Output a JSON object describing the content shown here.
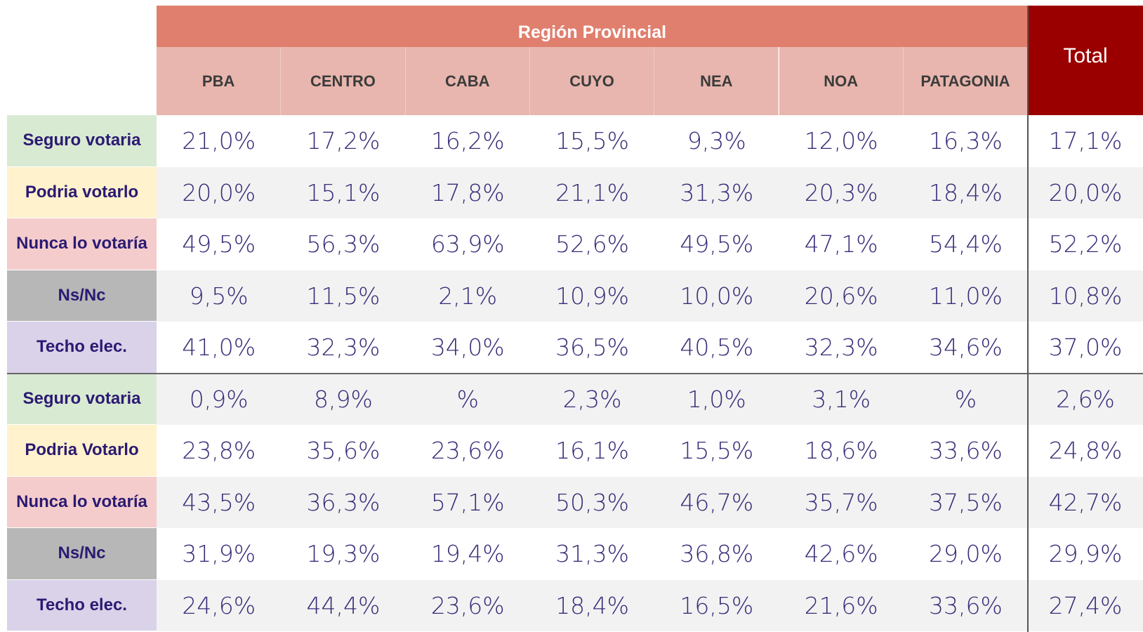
{
  "header": {
    "group": "Región Provincial",
    "columns": [
      "PBA",
      "CENTRO",
      "CABA",
      "CUYO",
      "NEA",
      "NOA",
      "PATAGONIA"
    ],
    "total": "Total"
  },
  "rows": [
    {
      "label": "Seguro votaria",
      "values": [
        "21,0%",
        "17,2%",
        "16,2%",
        "15,5%",
        "9,3%",
        "12,0%",
        "16,3%"
      ],
      "total": "17,1%"
    },
    {
      "label": "Podria votarlo",
      "values": [
        "20,0%",
        "15,1%",
        "17,8%",
        "21,1%",
        "31,3%",
        "20,3%",
        "18,4%"
      ],
      "total": "20,0%"
    },
    {
      "label": "Nunca lo votaría",
      "values": [
        "49,5%",
        "56,3%",
        "63,9%",
        "52,6%",
        "49,5%",
        "47,1%",
        "54,4%"
      ],
      "total": "52,2%"
    },
    {
      "label": "Ns/Nc",
      "values": [
        "9,5%",
        "11,5%",
        "2,1%",
        "10,9%",
        "10,0%",
        "20,6%",
        "11,0%"
      ],
      "total": "10,8%"
    },
    {
      "label": "Techo elec.",
      "values": [
        "41,0%",
        "32,3%",
        "34,0%",
        "36,5%",
        "40,5%",
        "32,3%",
        "34,6%"
      ],
      "total": "37,0%"
    },
    {
      "label": "Seguro votaria",
      "values": [
        "0,9%",
        "8,9%",
        "%",
        "2,3%",
        "1,0%",
        "3,1%",
        "%"
      ],
      "total": "2,6%"
    },
    {
      "label": "Podria Votarlo",
      "values": [
        "23,8%",
        "35,6%",
        "23,6%",
        "16,1%",
        "15,5%",
        "18,6%",
        "33,6%"
      ],
      "total": "24,8%"
    },
    {
      "label": "Nunca lo votaría",
      "values": [
        "43,5%",
        "36,3%",
        "57,1%",
        "50,3%",
        "46,7%",
        "35,7%",
        "37,5%"
      ],
      "total": "42,7%"
    },
    {
      "label": "Ns/Nc",
      "values": [
        "31,9%",
        "19,3%",
        "19,4%",
        "31,3%",
        "36,8%",
        "42,6%",
        "29,0%"
      ],
      "total": "29,9%"
    },
    {
      "label": "Techo elec.",
      "values": [
        "24,6%",
        "44,4%",
        "23,6%",
        "18,4%",
        "16,5%",
        "21,6%",
        "33,6%"
      ],
      "total": "27,4%"
    }
  ]
}
